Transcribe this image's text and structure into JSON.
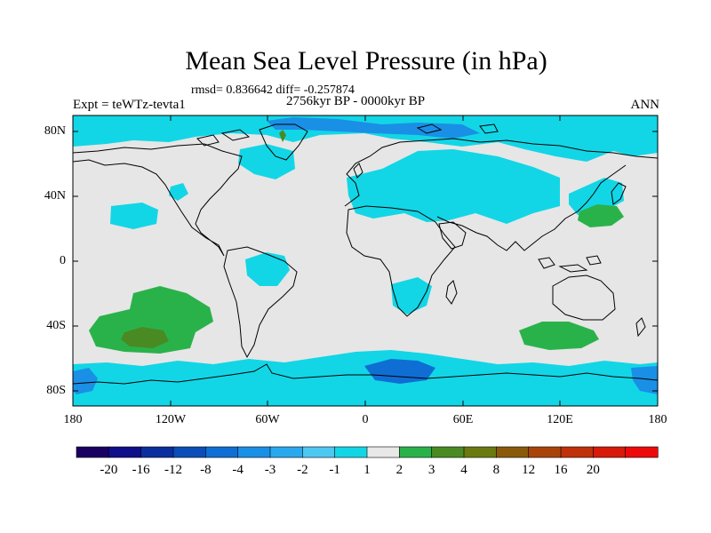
{
  "title": "Mean Sea Level Pressure (in hPa)",
  "stats": "rmsd= 0.836642 diff= -0.257874",
  "experiment": "Expt = teWTz-tevta1",
  "period": "2756kyr BP - 0000kyr BP",
  "season": "ANN",
  "lat_labels": [
    "80N",
    "40N",
    "0",
    "40S",
    "80S"
  ],
  "lon_labels": [
    "180",
    "120W",
    "60W",
    "0",
    "60E",
    "120E",
    "180"
  ],
  "colorbar": {
    "labels": [
      "-20",
      "-16",
      "-12",
      "-8",
      "-4",
      "-3",
      "-2",
      "-1",
      "1",
      "2",
      "3",
      "4",
      "8",
      "12",
      "16",
      "20"
    ],
    "colors": [
      "#1a0060",
      "#0f0f8a",
      "#0a2e9e",
      "#0a4db8",
      "#0f6ed4",
      "#1a8fe6",
      "#2aa8ee",
      "#4cc8f2",
      "#12d6e6",
      "#e8e8e8",
      "#2ab24a",
      "#4a8a22",
      "#6a7a10",
      "#8a5a0a",
      "#a8440a",
      "#c0300a",
      "#d81a0a",
      "#ee0a0a"
    ]
  },
  "palette": {
    "ocean": "#e6e6e6",
    "neg1": "#12d6e6",
    "neg2": "#2aa8ee",
    "neg3": "#1a8fe6",
    "pos1": "#2ab24a",
    "pos2": "#4a8a22"
  }
}
